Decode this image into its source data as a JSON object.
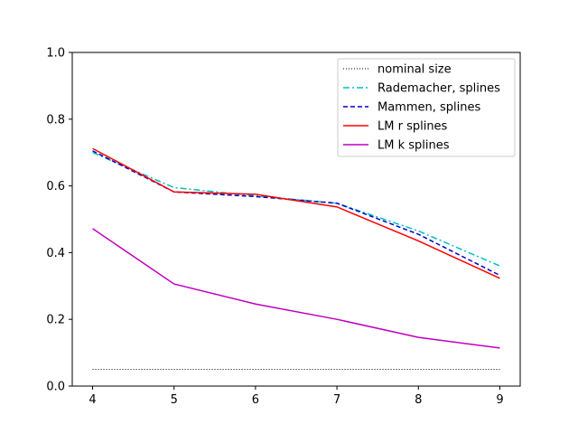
{
  "chart_data": {
    "type": "line",
    "title": "",
    "xlabel": "",
    "ylabel": "",
    "x": [
      4,
      5,
      6,
      7,
      8,
      9
    ],
    "xlim": [
      3.75,
      9.25
    ],
    "ylim": [
      0.0,
      1.0
    ],
    "xticks": [
      "4",
      "5",
      "6",
      "7",
      "8",
      "9"
    ],
    "yticks": [
      "0.0",
      "0.2",
      "0.4",
      "0.6",
      "0.8",
      "1.0"
    ],
    "grid": false,
    "legend_position": "top-right",
    "series": [
      {
        "name": "nominal size",
        "color": "#000000",
        "style": "dotted",
        "values": [
          0.05,
          0.05,
          0.05,
          0.05,
          0.05,
          0.05
        ]
      },
      {
        "name": "Rademacher, splines",
        "color": "#00bfbf",
        "style": "dashdot",
        "values": [
          0.7,
          0.595,
          0.57,
          0.548,
          0.465,
          0.36
        ]
      },
      {
        "name": "Mammen, splines",
        "color": "#0000cc",
        "style": "dashed",
        "values": [
          0.705,
          0.582,
          0.568,
          0.548,
          0.455,
          0.332
        ]
      },
      {
        "name": "LM r splines",
        "color": "#ff0000",
        "style": "solid",
        "values": [
          0.712,
          0.582,
          0.575,
          0.537,
          0.435,
          0.323
        ]
      },
      {
        "name": "LM k splines",
        "color": "#bf00bf",
        "style": "solid",
        "values": [
          0.472,
          0.306,
          0.246,
          0.2,
          0.146,
          0.114
        ]
      }
    ]
  }
}
